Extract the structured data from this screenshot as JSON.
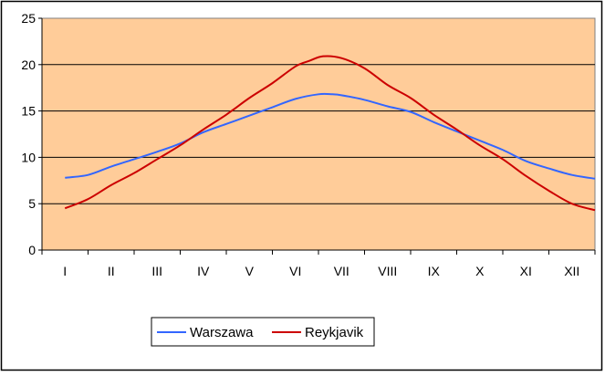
{
  "chart_data": {
    "type": "line",
    "title": "",
    "xlabel": "",
    "ylabel": "",
    "categories": [
      "I",
      "II",
      "III",
      "IV",
      "V",
      "VI",
      "VII",
      "VIII",
      "IX",
      "X",
      "XI",
      "XII"
    ],
    "ylim": [
      0,
      25
    ],
    "yticks": [
      0,
      5,
      10,
      15,
      20,
      25
    ],
    "grid": true,
    "legend_position": "bottom-left",
    "plot_background": "#FFCC99",
    "series": [
      {
        "name": "Warszawa",
        "color": "#3366FF",
        "x": [
          0.0,
          0.5,
          1.0,
          1.5,
          2.0,
          2.5,
          3.0,
          3.5,
          4.0,
          4.5,
          5.0,
          5.5,
          5.8,
          6.0,
          6.5,
          7.0,
          7.5,
          8.0,
          8.5,
          9.0,
          9.5,
          10.0,
          10.5,
          11.0,
          11.5
        ],
        "values": [
          7.8,
          8.1,
          9.0,
          9.8,
          10.6,
          11.5,
          12.7,
          13.6,
          14.5,
          15.4,
          16.3,
          16.8,
          16.8,
          16.7,
          16.2,
          15.5,
          14.9,
          13.8,
          12.8,
          11.8,
          10.8,
          9.6,
          8.8,
          8.1,
          7.7
        ]
      },
      {
        "name": "Reykjavik",
        "color": "#CC0000",
        "x": [
          0.0,
          0.5,
          1.0,
          1.5,
          2.0,
          2.5,
          3.0,
          3.5,
          4.0,
          4.5,
          5.0,
          5.3,
          5.6,
          6.0,
          6.5,
          7.0,
          7.5,
          8.0,
          8.5,
          9.0,
          9.5,
          10.0,
          10.5,
          11.0,
          11.5
        ],
        "values": [
          4.5,
          5.5,
          7.0,
          8.3,
          9.8,
          11.3,
          13.0,
          14.6,
          16.4,
          18.0,
          19.8,
          20.4,
          20.9,
          20.7,
          19.6,
          17.8,
          16.4,
          14.6,
          13.0,
          11.3,
          9.8,
          8.0,
          6.4,
          5.0,
          4.3
        ]
      }
    ]
  }
}
